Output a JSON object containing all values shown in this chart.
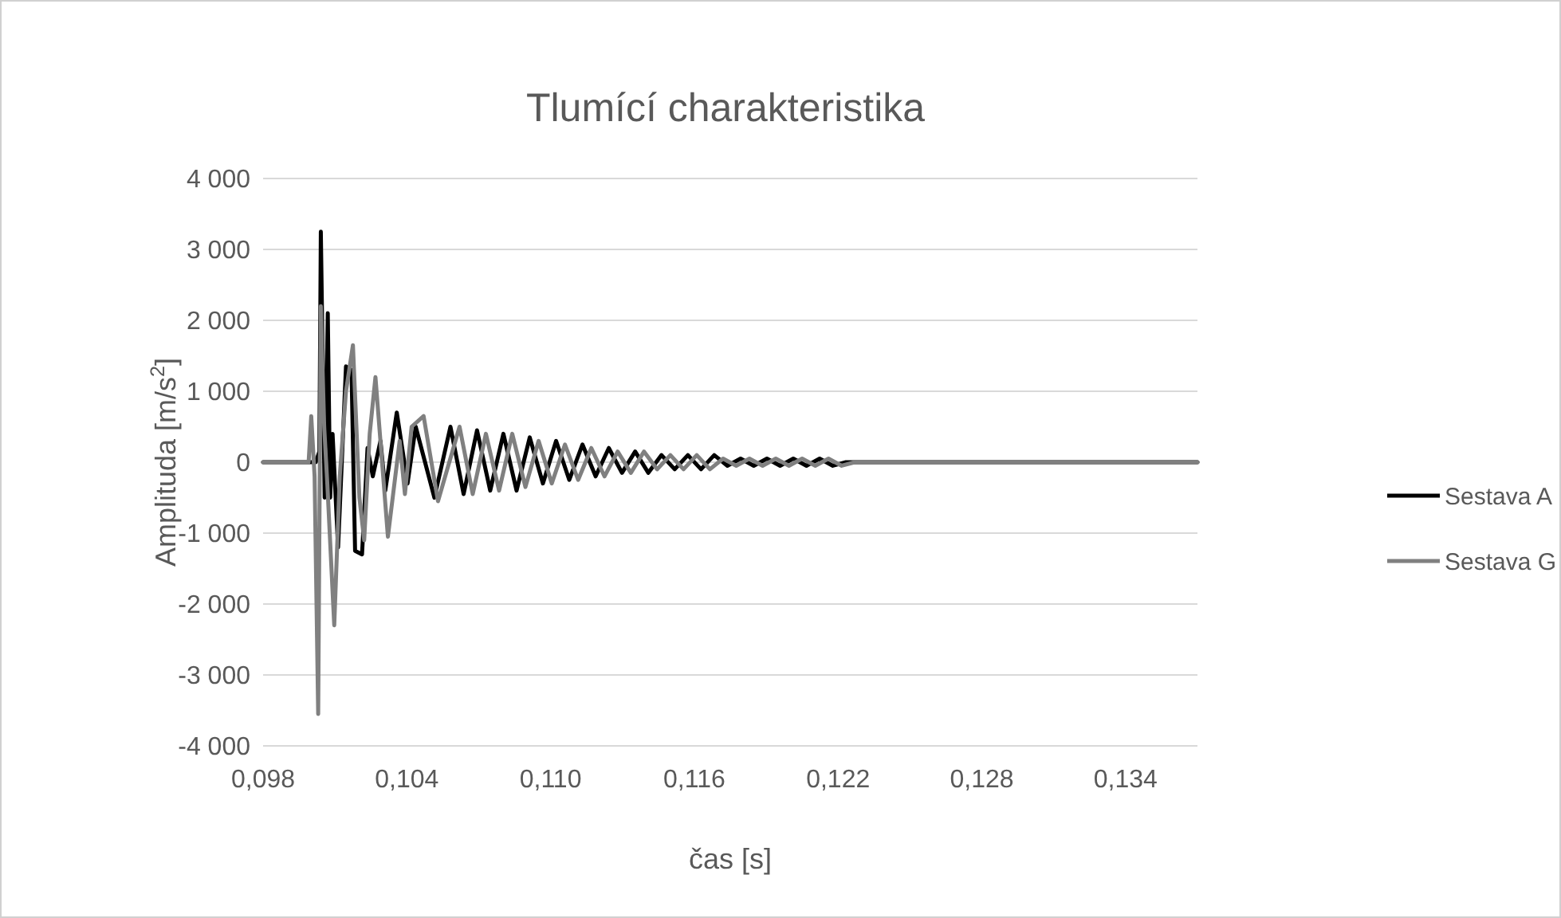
{
  "chart_data": {
    "type": "line",
    "title": "Tlumící charakteristika",
    "xlabel": "čas [s]",
    "ylabel": "Amplituda [m/s$^{2}$]",
    "xlim": [
      0.098,
      0.137
    ],
    "xticks": [
      {
        "value": 0.098,
        "label": "0,098"
      },
      {
        "value": 0.104,
        "label": "0,104"
      },
      {
        "value": 0.11,
        "label": "0,110"
      },
      {
        "value": 0.116,
        "label": "0,116"
      },
      {
        "value": 0.122,
        "label": "0,122"
      },
      {
        "value": 0.128,
        "label": "0,128"
      },
      {
        "value": 0.134,
        "label": "0,134"
      }
    ],
    "ylim": [
      -4000,
      4000
    ],
    "yticks": [
      {
        "value": -4000,
        "label": "-4 000"
      },
      {
        "value": -3000,
        "label": "-3 000"
      },
      {
        "value": -2000,
        "label": "-2 000"
      },
      {
        "value": -1000,
        "label": "-1 000"
      },
      0,
      {
        "value": 1000,
        "label": "1 000"
      },
      {
        "value": 2000,
        "label": "2 000"
      },
      {
        "value": 3000,
        "label": "3 000"
      },
      {
        "value": 4000,
        "label": "4 000"
      }
    ],
    "grid": "y",
    "legend": "right",
    "marker": "none",
    "line_style": "solid",
    "series": [
      {
        "name": "Sestava A",
        "color": "#000000",
        "x": [
          0.098,
          0.1002,
          0.10035,
          0.10041,
          0.10057,
          0.1007,
          0.1008,
          0.1009,
          0.10113,
          0.10146,
          0.10169,
          0.10184,
          0.10213,
          0.10236,
          0.10258,
          0.1029,
          0.1031,
          0.10358,
          0.10403,
          0.10437,
          0.10515,
          0.10582,
          0.10637,
          0.10693,
          0.10748,
          0.10803,
          0.10858,
          0.10913,
          0.10968,
          0.11023,
          0.11078,
          0.11133,
          0.11188,
          0.11243,
          0.11298,
          0.11353,
          0.11408,
          0.11463,
          0.11518,
          0.11573,
          0.11628,
          0.11683,
          0.11738,
          0.11793,
          0.11848,
          0.11903,
          0.11958,
          0.12013,
          0.12068,
          0.12123,
          0.12178,
          0.12233,
          0.12288,
          0.12343,
          0.12398,
          0.12453,
          0.12508,
          0.12563,
          0.12618,
          0.12673,
          0.12728,
          0.12783,
          0.12838,
          0.12893,
          0.12948,
          0.13003,
          0.13058,
          0.13113,
          0.13168,
          0.13223,
          0.13278,
          0.13333,
          0.13388,
          0.13443,
          0.13498,
          0.13553,
          0.13608,
          0.13663,
          0.137
        ],
        "values": [
          0,
          0,
          150,
          3250,
          -500,
          2100,
          -500,
          400,
          -1200,
          1350,
          1300,
          -1250,
          -1300,
          200,
          -200,
          300,
          -400,
          700,
          -300,
          500,
          -500,
          500,
          -450,
          450,
          -400,
          400,
          -400,
          350,
          -300,
          300,
          -250,
          250,
          -200,
          200,
          -150,
          150,
          -150,
          100,
          -100,
          100,
          -100,
          100,
          -50,
          50,
          -50,
          50,
          -50,
          50,
          -50,
          50,
          -50,
          0,
          0,
          0,
          0,
          0,
          0,
          0,
          0,
          0,
          0,
          0,
          0,
          0,
          0,
          0,
          0,
          0,
          0,
          0,
          0,
          0,
          0,
          0,
          0,
          0,
          0,
          0,
          0
        ]
      },
      {
        "name": "Sestava G",
        "color": "#808080",
        "x": [
          0.098,
          0.0999,
          0.10001,
          0.10015,
          0.1003,
          0.10041,
          0.10055,
          0.10068,
          0.10097,
          0.1012,
          0.10146,
          0.10175,
          0.10202,
          0.10222,
          0.10245,
          0.10269,
          0.10321,
          0.1037,
          0.10392,
          0.1042,
          0.1047,
          0.1053,
          0.1062,
          0.10675,
          0.1073,
          0.10785,
          0.1084,
          0.10895,
          0.1095,
          0.11005,
          0.1106,
          0.11115,
          0.1117,
          0.11225,
          0.1128,
          0.11335,
          0.1139,
          0.11445,
          0.115,
          0.11555,
          0.1161,
          0.11665,
          0.1172,
          0.11775,
          0.1183,
          0.11885,
          0.1194,
          0.11995,
          0.1205,
          0.12105,
          0.1216,
          0.12215,
          0.1227,
          0.12325,
          0.1238,
          0.12435,
          0.1249,
          0.12545,
          0.126,
          0.12655,
          0.1271,
          0.12765,
          0.1282,
          0.12875,
          0.1293,
          0.12985,
          0.1304,
          0.13095,
          0.1315,
          0.13205,
          0.1326,
          0.13315,
          0.1337,
          0.13425,
          0.1348,
          0.13535,
          0.1359,
          0.13645,
          0.137
        ],
        "values": [
          0,
          0,
          650,
          -200,
          -3550,
          2200,
          500,
          -300,
          -2300,
          -200,
          1000,
          1650,
          -500,
          -1100,
          400,
          1200,
          -1050,
          300,
          -450,
          500,
          650,
          -550,
          500,
          -450,
          400,
          -400,
          400,
          -350,
          300,
          -300,
          250,
          -250,
          200,
          -200,
          150,
          -150,
          150,
          -100,
          100,
          -100,
          100,
          -100,
          50,
          -50,
          50,
          -50,
          50,
          -50,
          50,
          -50,
          50,
          -50,
          0,
          0,
          0,
          0,
          0,
          0,
          0,
          0,
          0,
          0,
          0,
          0,
          0,
          0,
          0,
          0,
          0,
          0,
          0,
          0,
          0,
          0,
          0,
          0,
          0,
          0,
          0
        ]
      }
    ]
  }
}
